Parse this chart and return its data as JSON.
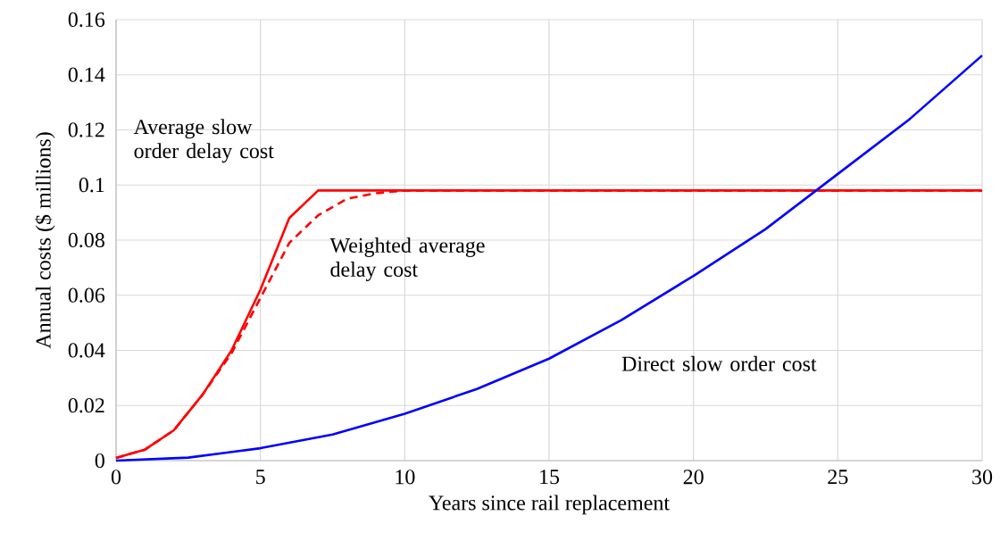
{
  "chart_data": {
    "type": "line",
    "xlabel": "Years since rail replacement",
    "ylabel": "Annual costs ($ millions)",
    "xlim": [
      0,
      30
    ],
    "ylim": [
      0,
      0.16
    ],
    "xticks": [
      0,
      5,
      10,
      15,
      20,
      25,
      30
    ],
    "yticks": [
      0,
      0.02,
      0.04,
      0.06,
      0.08,
      0.1,
      0.12,
      0.14,
      0.16
    ],
    "grid": true,
    "series": [
      {
        "name": "Average slow order delay cost",
        "color": "#ff0000",
        "line_style": "solid",
        "x": [
          0,
          1,
          2,
          3,
          4,
          5,
          6,
          7,
          30
        ],
        "values": [
          0.001,
          0.004,
          0.011,
          0.024,
          0.04,
          0.062,
          0.088,
          0.098,
          0.098
        ]
      },
      {
        "name": "Weighted average delay cost",
        "color": "#ff0000",
        "line_style": "dashed",
        "x": [
          0,
          1,
          2,
          3,
          4,
          5,
          6,
          7,
          8,
          9,
          10,
          30
        ],
        "values": [
          0.001,
          0.004,
          0.011,
          0.024,
          0.039,
          0.059,
          0.079,
          0.089,
          0.095,
          0.097,
          0.098,
          0.098
        ]
      },
      {
        "name": "Direct slow order cost",
        "color": "#0000ff",
        "line_style": "solid",
        "x": [
          0,
          2.5,
          5,
          7.5,
          10,
          12.5,
          15,
          17.5,
          20,
          22.5,
          25,
          27.5,
          30
        ],
        "values": [
          0,
          0.0011,
          0.0045,
          0.0095,
          0.017,
          0.026,
          0.037,
          0.051,
          0.067,
          0.084,
          0.104,
          0.124,
          0.147
        ]
      }
    ]
  }
}
